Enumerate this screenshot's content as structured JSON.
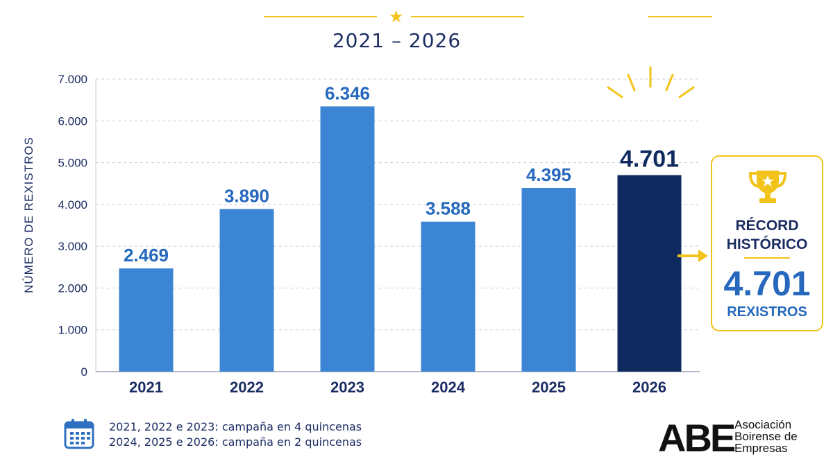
{
  "chart_data": {
    "type": "bar",
    "title": "2021 – 2026",
    "ylabel": "NÚMERO DE REXISTROS",
    "xlabel": "",
    "ylim": [
      0,
      7000
    ],
    "y_ticks": [
      "0",
      "1.000",
      "2.000",
      "3.000",
      "4.000",
      "5.000",
      "6.000",
      "7.000"
    ],
    "grid": "horizontal dashed",
    "categories": [
      "2021",
      "2022",
      "2023",
      "2024",
      "2025",
      "2026"
    ],
    "values": [
      2469,
      3890,
      6346,
      3588,
      4395,
      4701
    ],
    "value_labels": [
      "2.469",
      "3.890",
      "6.346",
      "3.588",
      "4.395",
      "4.701"
    ],
    "highlight_index": 5,
    "colors": {
      "bar": "#3b85d4",
      "highlight": "#0e2a5e",
      "label": "#2568bd",
      "highlight_label": "#0e2a5e",
      "axis_text": "#1c2d63",
      "accent": "#f2c31a"
    }
  },
  "record": {
    "icon": "trophy-icon",
    "line1": "RÉCORD",
    "line2": "HISTÓRICO",
    "value": "4.701",
    "unit": "REXISTROS"
  },
  "notes": {
    "icon": "calendar-icon",
    "line1": "2021, 2022 e 2023: campaña en 4 quincenas",
    "line2": "2024, 2025 e 2026: campaña en 2 quincenas"
  },
  "logo": {
    "mark": "ABE",
    "line1": "Asociación",
    "line2": "Boirense de",
    "line3": "Empresas"
  }
}
